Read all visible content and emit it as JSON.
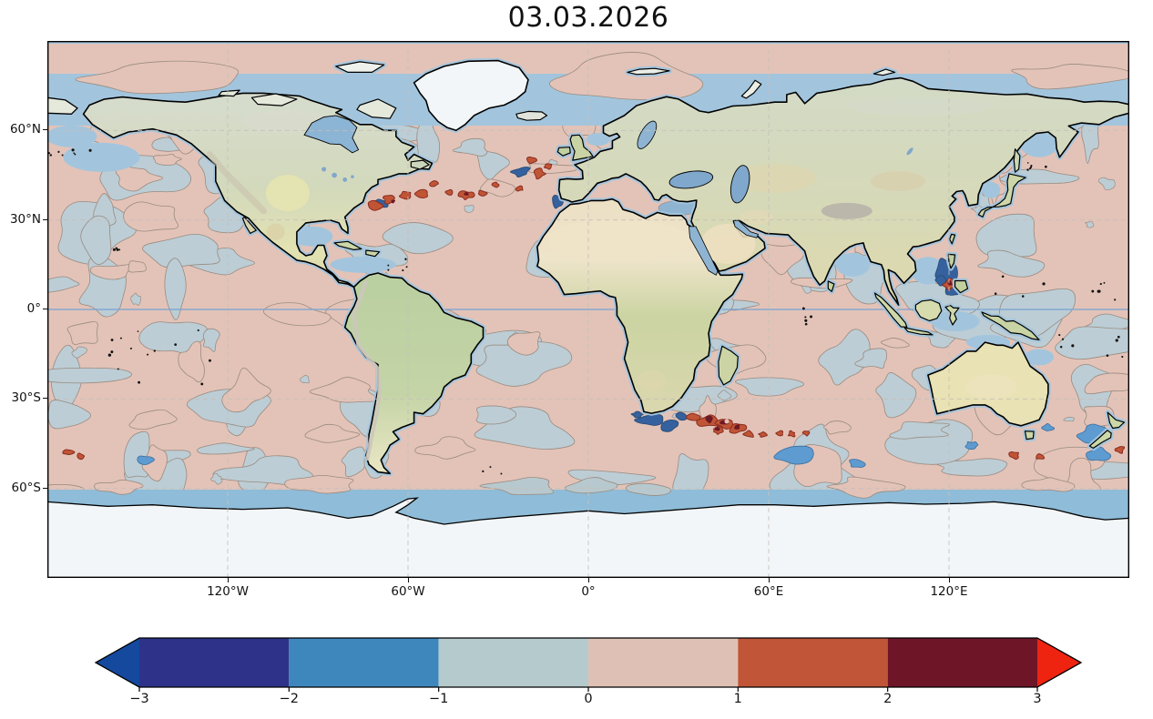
{
  "title": "03.03.2026",
  "axes": {
    "lat": [
      "60°N",
      "30°N",
      "0°",
      "30°S",
      "60°S"
    ],
    "lon": [
      "120°W",
      "60°W",
      "0°",
      "60°E",
      "120°E"
    ]
  },
  "colorbar": {
    "ticks": [
      "−3",
      "−2",
      "−1",
      "0",
      "1",
      "2",
      "3"
    ],
    "segments": [
      "#2e3389",
      "#3e87bc",
      "#b5cacd",
      "#dec1b4",
      "#c05538",
      "#6e1628"
    ],
    "arrow_left": "#15499e",
    "arrow_right": "#ee2410",
    "outline": "#000000"
  },
  "map_colors": {
    "anomaly_positive": "#e3c3b8",
    "anomaly_negative": "#bccdd5",
    "strong_negative": "#35619e",
    "strong_positive": "#c05536",
    "extreme_positive": "#6e1823",
    "open_ocean": "#a2c5dd",
    "antarctic_ocean": "#8fbcd8",
    "contour_line": "#9a8b80",
    "coastline": "#000000",
    "ice_sheet": "#f3f6f8"
  },
  "chart_data": {
    "type": "heatmap",
    "title": "03.03.2026",
    "x_ticks": [
      "120°W",
      "60°W",
      "0°",
      "60°E",
      "120°E"
    ],
    "y_ticks": [
      "60°N",
      "30°N",
      "0°",
      "30°S",
      "60°S"
    ],
    "x_range_deg": [
      -180,
      180
    ],
    "y_range_deg": [
      -90,
      90
    ],
    "colorbar_ticks": [
      -3,
      -2,
      -1,
      0,
      1,
      2,
      3
    ],
    "colorbar_extend": "both",
    "grid": "dashed graticule every 30 deg lat / 60 deg lon"
  }
}
